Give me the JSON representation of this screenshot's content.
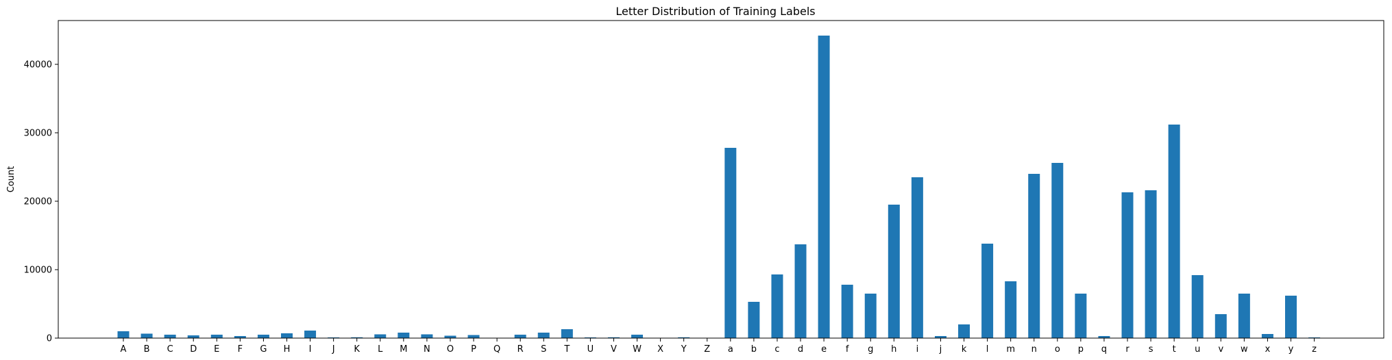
{
  "chart_data": {
    "type": "bar",
    "title": "Letter Distribution of Training Labels",
    "xlabel": "",
    "ylabel": "Count",
    "ylim": [
      0,
      46400
    ],
    "yticks": [
      0,
      10000,
      20000,
      30000,
      40000
    ],
    "grid": false,
    "bar_color": "#1f77b4",
    "categories": [
      "A",
      "B",
      "C",
      "D",
      "E",
      "F",
      "G",
      "H",
      "I",
      "J",
      "K",
      "L",
      "M",
      "N",
      "O",
      "P",
      "Q",
      "R",
      "S",
      "T",
      "U",
      "V",
      "W",
      "X",
      "Y",
      "Z",
      "a",
      "b",
      "c",
      "d",
      "e",
      "f",
      "g",
      "h",
      "i",
      "j",
      "k",
      "l",
      "m",
      "n",
      "o",
      "p",
      "q",
      "r",
      "s",
      "t",
      "u",
      "v",
      "w",
      "x",
      "y",
      "z"
    ],
    "values": [
      1000,
      650,
      500,
      400,
      500,
      300,
      500,
      700,
      1100,
      100,
      120,
      550,
      800,
      550,
      350,
      450,
      50,
      500,
      800,
      1300,
      100,
      120,
      500,
      40,
      120,
      50,
      27800,
      5300,
      9300,
      13700,
      44200,
      7800,
      6500,
      19500,
      23500,
      300,
      2000,
      13800,
      8300,
      24000,
      25600,
      6500,
      300,
      21300,
      21600,
      31200,
      9200,
      3500,
      6500,
      600,
      6200,
      100
    ]
  }
}
